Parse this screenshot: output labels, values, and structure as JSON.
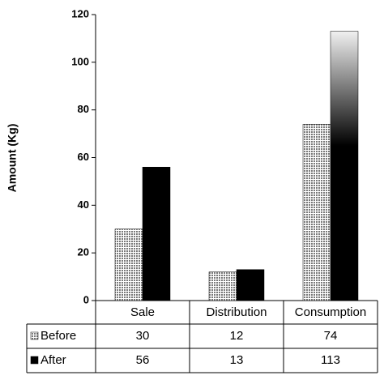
{
  "chart_data": {
    "type": "bar",
    "y_label": "Amount (Kg)",
    "categories": [
      "Sale",
      "Distribution",
      "Consumption"
    ],
    "series": [
      {
        "name": "Before",
        "color": "#7a7a7a",
        "values": [
          30,
          12,
          74
        ]
      },
      {
        "name": "After",
        "color": "#000000",
        "values": [
          56,
          13,
          113
        ]
      }
    ],
    "ylim": [
      0,
      120
    ],
    "yticks": [
      0,
      20,
      40,
      60,
      80,
      100,
      120
    ],
    "data_table": true
  }
}
